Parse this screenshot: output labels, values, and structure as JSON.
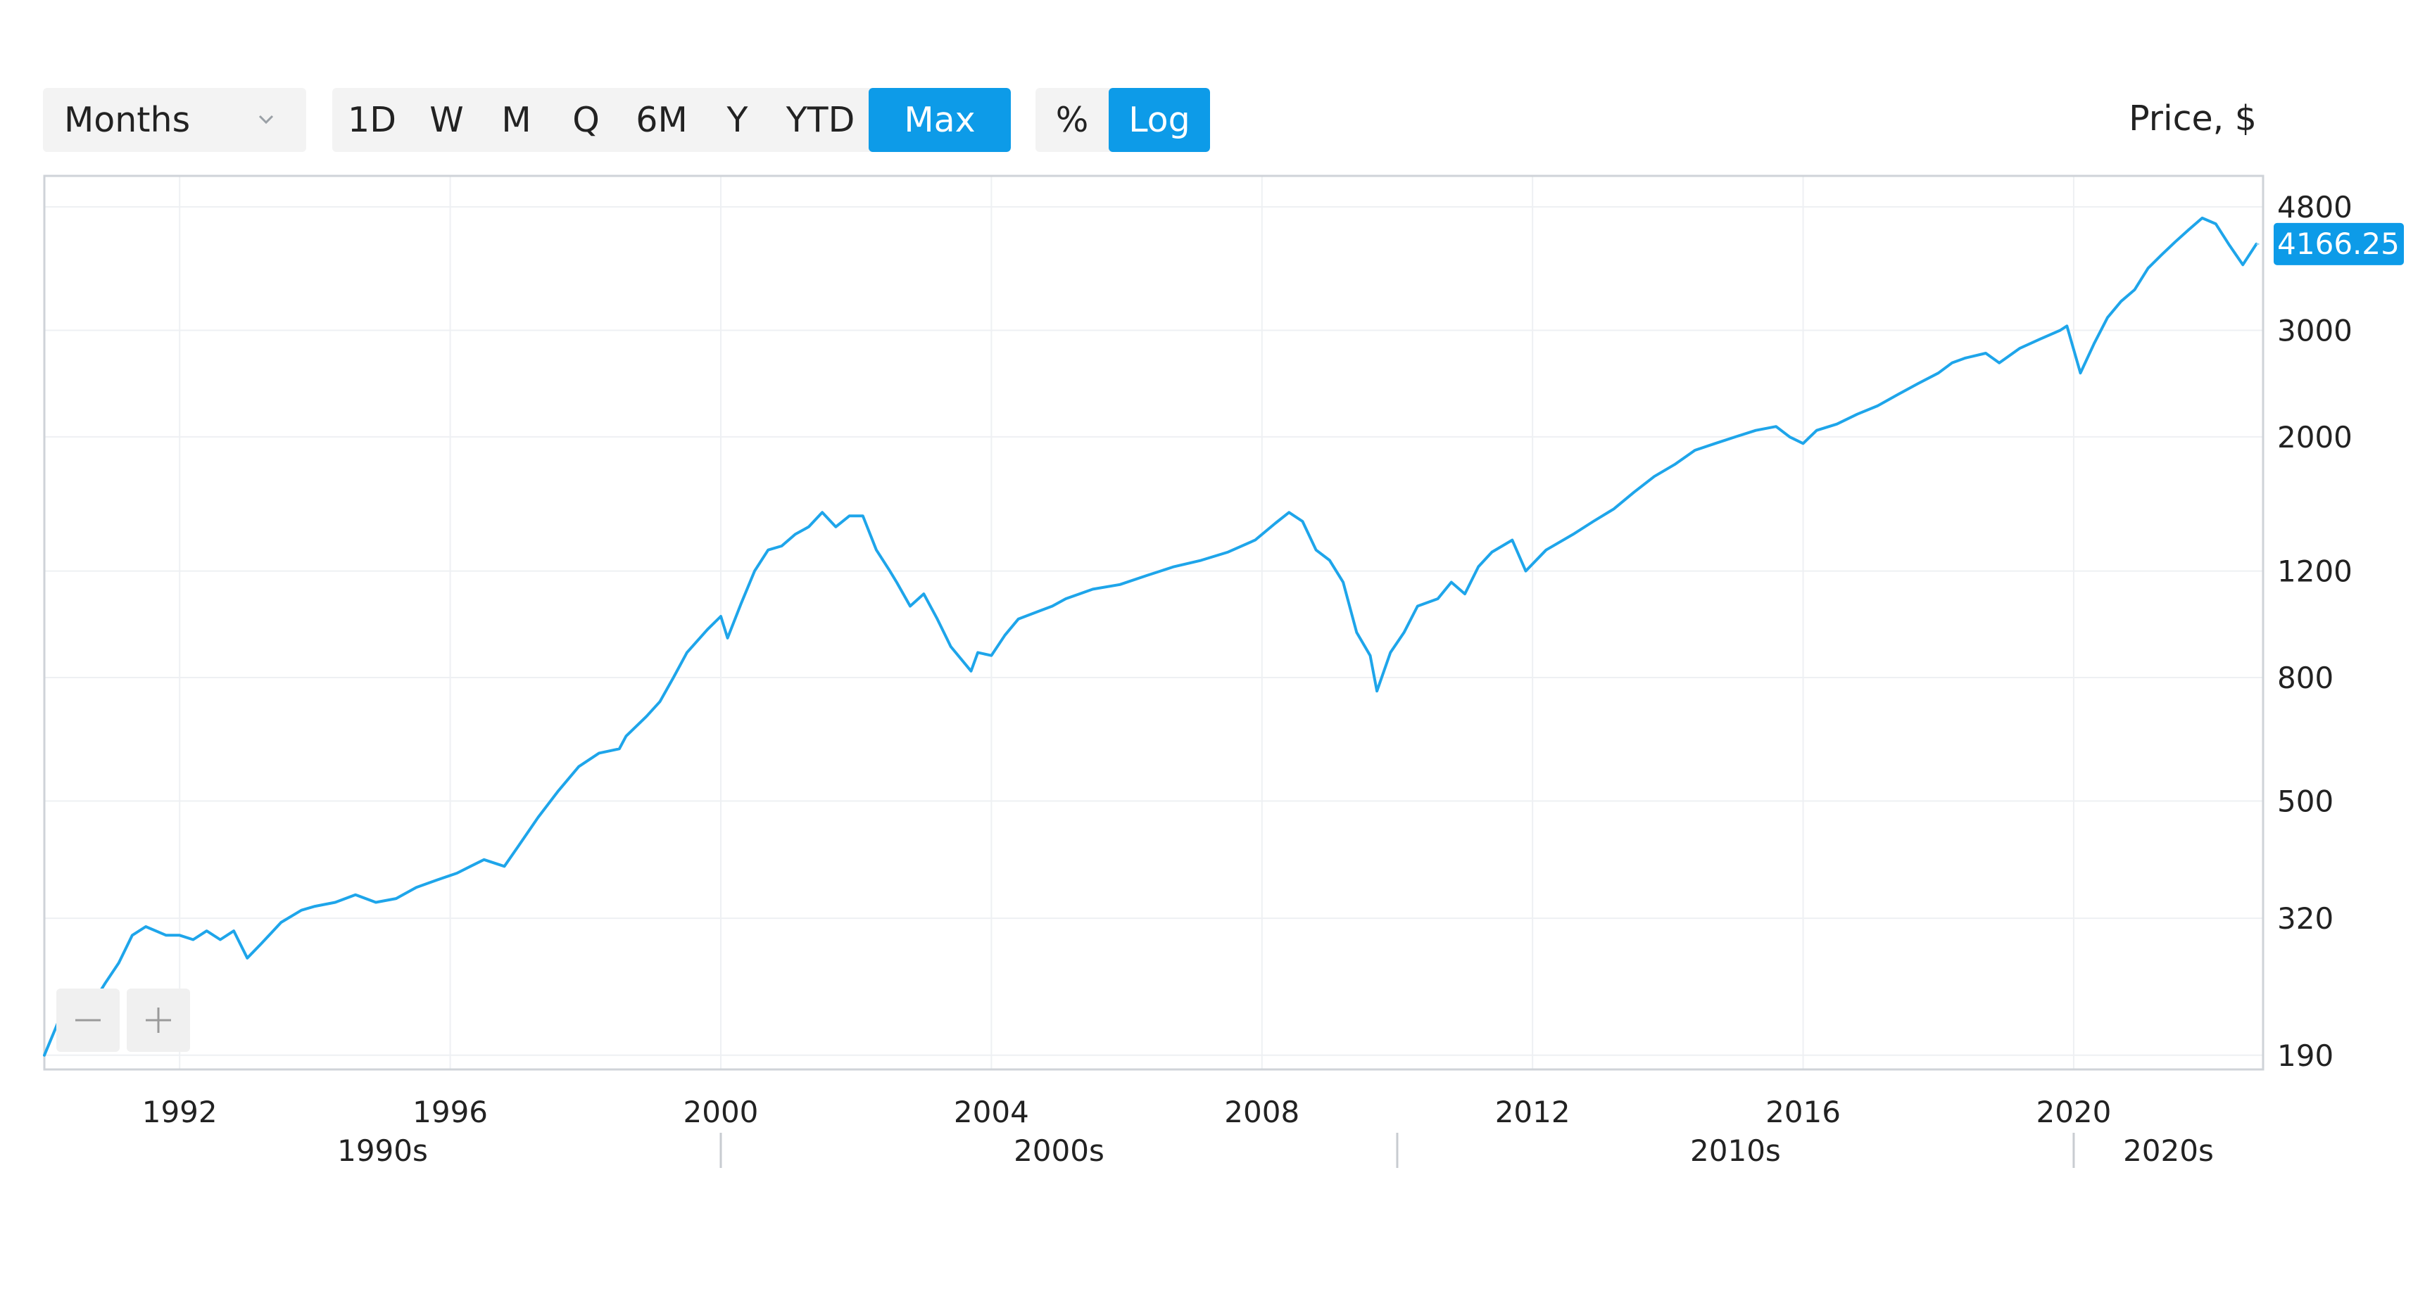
{
  "toolbar": {
    "period_select": {
      "value": "Months",
      "icon": "chevron-down-icon"
    },
    "ranges": [
      "1D",
      "W",
      "M",
      "Q",
      "6M",
      "Y",
      "YTD",
      "Max"
    ],
    "active_range": "Max",
    "scales": [
      "%",
      "Log"
    ],
    "active_scale": "Log",
    "units_label": "Price, $"
  },
  "zoom": {
    "out_icon": "minus-icon",
    "in_icon": "plus-icon"
  },
  "colors": {
    "accent": "#0d9be8",
    "line": "#1ea5ea",
    "grid": "#eef0f3",
    "frame": "#cfd3d8",
    "button_bg": "#f3f3f3"
  },
  "chart_data": {
    "type": "line",
    "title": "",
    "xlabel": "",
    "ylabel": "Price, $",
    "yscale": "log",
    "ylim": [
      180,
      5400
    ],
    "xlim": [
      1990.0,
      2022.8
    ],
    "grid": true,
    "legend": "none",
    "y_ticks": [
      190,
      320,
      500,
      800,
      1200,
      2000,
      3000,
      4800
    ],
    "x_ticks": [
      1992,
      1996,
      2000,
      2004,
      2008,
      2012,
      2016,
      2020
    ],
    "decades": [
      {
        "label": "1990s",
        "start": 1990.0,
        "end": 2000.0
      },
      {
        "label": "2000s",
        "start": 2000.0,
        "end": 2010.0
      },
      {
        "label": "2010s",
        "start": 2010.0,
        "end": 2020.0
      },
      {
        "label": "2020s",
        "start": 2020.0,
        "end": 2022.8
      }
    ],
    "last_value": "4166.25",
    "series": [
      {
        "x": [
          1990.0,
          1990.2,
          1990.5,
          1990.7,
          1990.9,
          1991.1,
          1991.3,
          1991.5,
          1991.8,
          1992.0,
          1992.2,
          1992.4,
          1992.6,
          1992.8,
          1993.0,
          1993.2,
          1993.5,
          1993.8,
          1994.0,
          1994.3,
          1994.6,
          1994.9,
          1995.2,
          1995.5,
          1995.8,
          1996.1,
          1996.3,
          1996.5,
          1996.8,
          1997.0,
          1997.3,
          1997.6,
          1997.9,
          1998.2,
          1998.5,
          1998.6,
          1998.9,
          1999.1,
          1999.3,
          1999.5,
          1999.8,
          2000.0,
          2000.1,
          2000.3,
          2000.5,
          2000.7,
          2000.9,
          2001.1,
          2001.3,
          2001.5,
          2001.7,
          2001.9,
          2002.1,
          2002.3,
          2002.5,
          2002.6,
          2002.8,
          2003.0,
          2003.2,
          2003.4,
          2003.7,
          2003.8,
          2004.0,
          2004.2,
          2004.4,
          2004.7,
          2004.9,
          2005.1,
          2005.5,
          2005.9,
          2006.3,
          2006.7,
          2007.1,
          2007.5,
          2007.9,
          2008.2,
          2008.4,
          2008.6,
          2008.8,
          2009.0,
          2009.2,
          2009.4,
          2009.6,
          2009.7,
          2009.9,
          2010.1,
          2010.3,
          2010.6,
          2010.8,
          2011.0,
          2011.2,
          2011.4,
          2011.7,
          2011.9,
          2012.2,
          2012.6,
          2012.9,
          2013.2,
          2013.5,
          2013.8,
          2014.1,
          2014.4,
          2014.7,
          2015.0,
          2015.3,
          2015.6,
          2015.8,
          2016.0,
          2016.2,
          2016.5,
          2016.8,
          2017.1,
          2017.4,
          2017.7,
          2018.0,
          2018.2,
          2018.4,
          2018.7,
          2018.9,
          2019.2,
          2019.5,
          2019.8,
          2019.9,
          2020.1,
          2020.3,
          2020.5,
          2020.7,
          2020.9,
          2021.1,
          2021.3,
          2021.5,
          2021.7,
          2021.9,
          2022.1,
          2022.3,
          2022.5,
          2022.7
        ],
        "y": [
          190,
          215,
          210,
          230,
          250,
          270,
          300,
          310,
          300,
          300,
          295,
          305,
          295,
          305,
          275,
          290,
          315,
          330,
          335,
          340,
          350,
          340,
          345,
          360,
          370,
          380,
          390,
          400,
          390,
          420,
          470,
          520,
          570,
          600,
          610,
          640,
          690,
          730,
          800,
          880,
          960,
          1010,
          930,
          1060,
          1200,
          1300,
          1320,
          1380,
          1420,
          1500,
          1420,
          1480,
          1480,
          1300,
          1200,
          1150,
          1050,
          1100,
          1000,
          900,
          820,
          880,
          870,
          940,
          1000,
          1030,
          1050,
          1080,
          1120,
          1140,
          1180,
          1220,
          1250,
          1290,
          1350,
          1440,
          1500,
          1450,
          1300,
          1250,
          1150,
          950,
          870,
          760,
          880,
          950,
          1050,
          1080,
          1150,
          1100,
          1220,
          1290,
          1350,
          1200,
          1300,
          1380,
          1450,
          1520,
          1620,
          1720,
          1800,
          1900,
          1950,
          2000,
          2050,
          2080,
          2000,
          1950,
          2050,
          2100,
          2180,
          2250,
          2350,
          2450,
          2550,
          2650,
          2700,
          2750,
          2650,
          2800,
          2900,
          3000,
          3050,
          2550,
          2850,
          3150,
          3350,
          3500,
          3800,
          4000,
          4200,
          4400,
          4600,
          4500,
          4150,
          3850,
          4166.25
        ]
      }
    ]
  }
}
